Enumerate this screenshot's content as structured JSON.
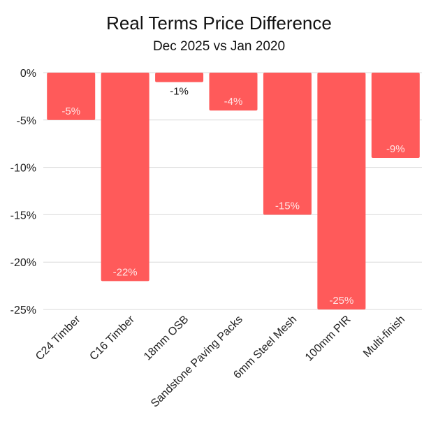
{
  "chart_data": {
    "type": "bar",
    "title": "Real Terms Price Difference",
    "subtitle": "Dec 2025 vs Jan 2020",
    "categories": [
      "C24 Timber",
      "C16 Timber",
      "18mm OSB",
      "Sandstone Paving Packs",
      "6mm Steel Mesh",
      "100mm PIR",
      "Multi-finish"
    ],
    "values": [
      -5,
      -22,
      -1,
      -4,
      -15,
      -25,
      -9
    ],
    "data_labels": [
      "-5%",
      "-22%",
      "-1%",
      "-4%",
      "-15%",
      "-25%",
      "-9%"
    ],
    "yticks": [
      0,
      -5,
      -10,
      -15,
      -20,
      -25
    ],
    "ytick_labels": [
      "0%",
      "-5%",
      "-10%",
      "-15%",
      "-20%",
      "-25%"
    ],
    "ylim": [
      -25,
      0
    ],
    "xlabel": "",
    "ylabel": "",
    "grid": true,
    "bar_color": "#ff5a5a",
    "grid_color": "#d9d9d9",
    "label_inside_color": "#ffe5e5",
    "label_outside_color": "#111111"
  }
}
